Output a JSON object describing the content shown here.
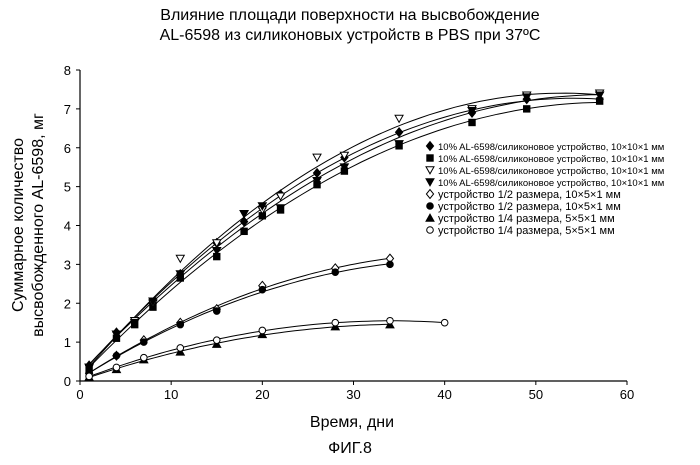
{
  "title_line1": "Влияние площади поверхности на высвобождение",
  "title_line2": "AL-6598 из силиконовых устройств в PBS при 37ºC",
  "figure_caption": "ФИГ.8",
  "chart_data": {
    "type": "scatter",
    "xlabel": "Время, дни",
    "ylabel": "Суммарное количество высвобожденного AL-6598, мг",
    "ylabel_line1": "Суммарное количество",
    "ylabel_line2": "высвобожденного AL-6598, мг",
    "xlim": [
      0,
      60
    ],
    "ylim": [
      0,
      8
    ],
    "xticks": [
      "0",
      "10",
      "20",
      "30",
      "40",
      "50",
      "60"
    ],
    "yticks": [
      "0",
      "1",
      "2",
      "3",
      "4",
      "5",
      "6",
      "7",
      "8"
    ],
    "grid": false,
    "legend_position": "right",
    "series": [
      {
        "name": "10% AL-6598/силиконовое устройство, 10×10×1 мм",
        "marker": "diamond-filled",
        "x": [
          1,
          4,
          8,
          11,
          15,
          18,
          20,
          22,
          26,
          29,
          35,
          43,
          49,
          57
        ],
        "y": [
          0.4,
          1.25,
          2.0,
          2.75,
          3.55,
          4.1,
          4.45,
          4.8,
          5.35,
          5.75,
          6.4,
          6.9,
          7.25,
          7.25
        ]
      },
      {
        "name": "10% AL-6598/силиконовое устройство, 10×10×1 мм",
        "marker": "square-filled",
        "x": [
          1,
          4,
          6,
          8,
          11,
          15,
          18,
          20,
          22,
          26,
          29,
          35,
          43,
          49,
          57
        ],
        "y": [
          0.3,
          1.1,
          1.45,
          1.9,
          2.65,
          3.2,
          3.85,
          4.25,
          4.4,
          5.05,
          5.4,
          6.05,
          6.65,
          7.0,
          7.2
        ]
      },
      {
        "name": "10% AL-6598/силиконовое устройство, 10×10×1 мм",
        "marker": "triangle-down-open",
        "x": [
          1,
          4,
          6,
          8,
          11,
          15,
          18,
          20,
          22,
          26,
          29,
          35,
          43,
          49,
          57
        ],
        "y": [
          0.35,
          1.2,
          1.55,
          2.0,
          3.15,
          3.55,
          4.3,
          4.4,
          4.75,
          5.75,
          5.8,
          6.75,
          7.0,
          7.35,
          7.4
        ]
      },
      {
        "name": "10% AL-6598/силиконовое устройство, 10×10×1 мм",
        "marker": "triangle-down-filled",
        "x": [
          1,
          4,
          6,
          8,
          11,
          15,
          18,
          20,
          22,
          26,
          29,
          35,
          43,
          49,
          57
        ],
        "y": [
          0.35,
          1.2,
          1.5,
          2.05,
          2.75,
          3.35,
          4.3,
          4.5,
          4.45,
          5.15,
          5.5,
          6.1,
          6.95,
          7.3,
          7.35
        ]
      },
      {
        "name": "устройство 1/2 размера, 10×5×1 мм",
        "marker": "diamond-open",
        "x": [
          1,
          4,
          7,
          11,
          15,
          20,
          28,
          34
        ],
        "y": [
          0.2,
          0.65,
          1.05,
          1.5,
          1.85,
          2.45,
          2.9,
          3.15
        ]
      },
      {
        "name": "устройство 1/2 размера, 10×5×1 мм",
        "marker": "circle-filled",
        "x": [
          1,
          4,
          7,
          11,
          15,
          20,
          28,
          34
        ],
        "y": [
          0.2,
          0.65,
          1.0,
          1.45,
          1.8,
          2.35,
          2.8,
          3.0
        ]
      },
      {
        "name": "устройство 1/4 размера, 5×5×1 мм",
        "marker": "triangle-up-filled",
        "x": [
          1,
          4,
          7,
          11,
          15,
          20,
          28,
          34
        ],
        "y": [
          0.1,
          0.3,
          0.55,
          0.75,
          0.95,
          1.2,
          1.4,
          1.45
        ]
      },
      {
        "name": "устройство 1/4 размера, 5×5×1 мм",
        "marker": "circle-open",
        "x": [
          1,
          4,
          7,
          11,
          15,
          20,
          28,
          34,
          40
        ],
        "y": [
          0.12,
          0.35,
          0.6,
          0.85,
          1.05,
          1.3,
          1.5,
          1.55,
          1.5
        ]
      }
    ]
  }
}
